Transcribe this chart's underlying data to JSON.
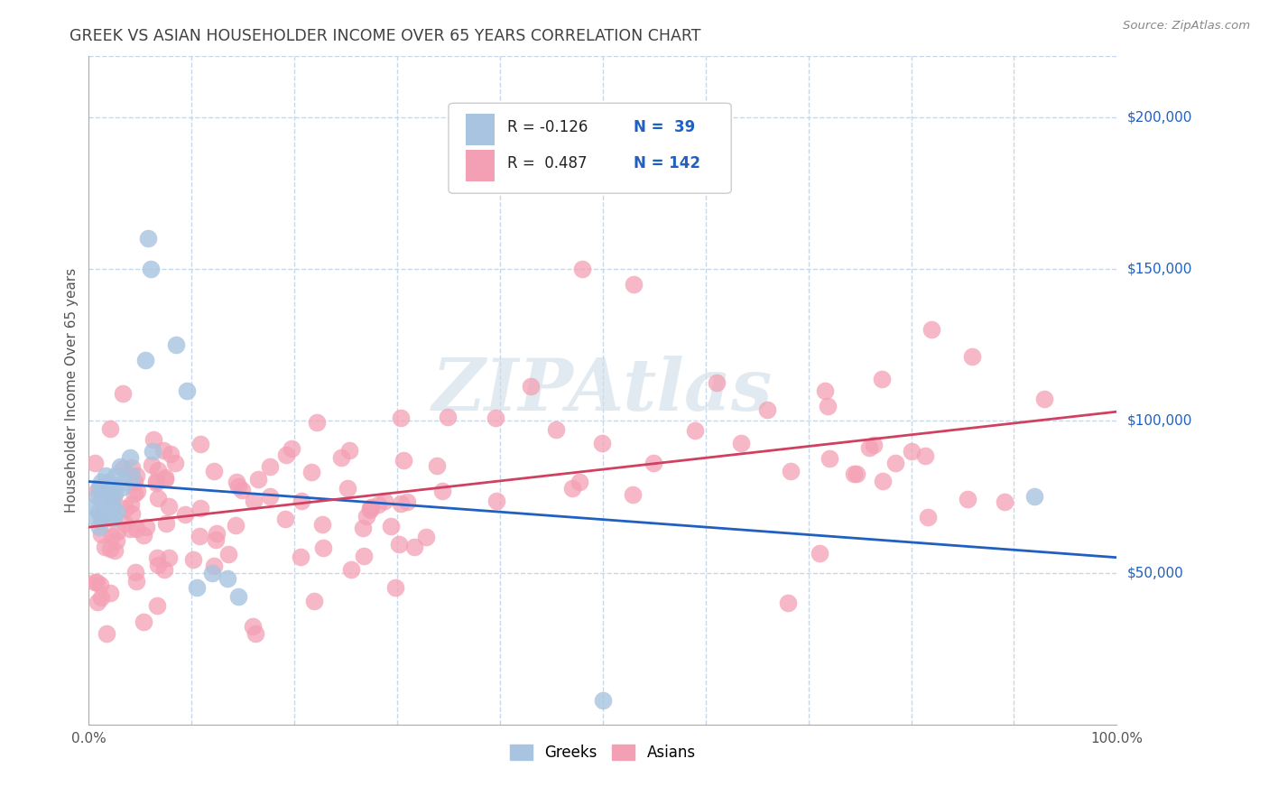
{
  "title": "GREEK VS ASIAN HOUSEHOLDER INCOME OVER 65 YEARS CORRELATION CHART",
  "source": "Source: ZipAtlas.com",
  "ylabel": "Householder Income Over 65 years",
  "xlim": [
    0,
    1
  ],
  "ylim": [
    0,
    220000
  ],
  "yticks": [
    50000,
    100000,
    150000,
    200000
  ],
  "ytick_labels": [
    "$50,000",
    "$100,000",
    "$150,000",
    "$200,000"
  ],
  "watermark": "ZIPAtlas",
  "greek_color": "#a8c4e0",
  "asian_color": "#f4a0b4",
  "trendline_greek_color": "#2060c0",
  "trendline_asian_color": "#d04060",
  "background_color": "#ffffff",
  "grid_color": "#c8d8e8",
  "title_color": "#404040",
  "legend_greek_R": "R = -0.126",
  "legend_greek_N": "N =  39",
  "legend_asian_R": "R =  0.487",
  "legend_asian_N": "N = 142",
  "greek_trend_x0": 0.0,
  "greek_trend_y0": 80000,
  "greek_trend_x1": 1.0,
  "greek_trend_y1": 55000,
  "asian_trend_x0": 0.0,
  "asian_trend_y0": 65000,
  "asian_trend_x1": 1.0,
  "asian_trend_y1": 103000
}
